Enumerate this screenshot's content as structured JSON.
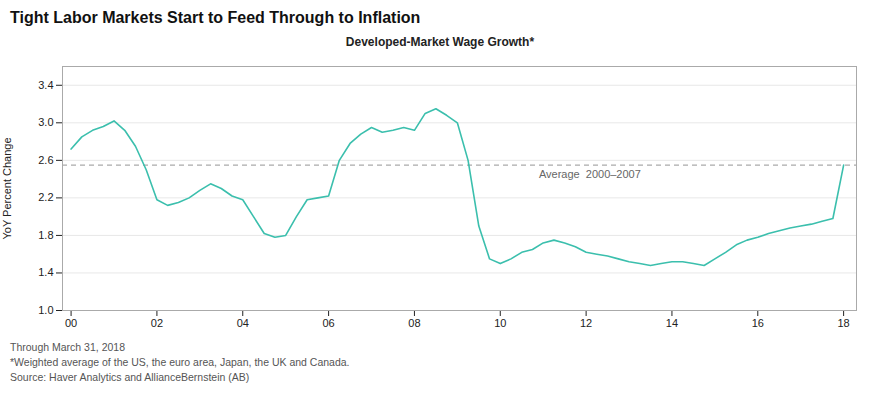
{
  "chart_data": {
    "type": "line",
    "title": "Tight Labor Markets Start to Feed Through to Inflation",
    "subtitle": "Developed-Market Wage Growth*",
    "ylabel": "YoY Percent Change",
    "notes": [
      "Through March 31, 2018",
      "*Weighted average of the US, the euro area, Japan, the UK and Canada.",
      "Source: Haver Analytics and AllianceBernstein (AB)"
    ],
    "color": "#3bbfad",
    "grid": true,
    "average": {
      "value": 2.55,
      "label": "Average  2000–2007",
      "color": "#aaaaaa"
    },
    "x": [
      2000.0,
      2000.25,
      2000.5,
      2000.75,
      2001.0,
      2001.25,
      2001.5,
      2001.75,
      2002.0,
      2002.25,
      2002.5,
      2002.75,
      2003.0,
      2003.25,
      2003.5,
      2003.75,
      2004.0,
      2004.25,
      2004.5,
      2004.75,
      2005.0,
      2005.25,
      2005.5,
      2005.75,
      2006.0,
      2006.25,
      2006.5,
      2006.75,
      2007.0,
      2007.25,
      2007.5,
      2007.75,
      2008.0,
      2008.25,
      2008.5,
      2008.75,
      2009.0,
      2009.25,
      2009.5,
      2009.75,
      2010.0,
      2010.25,
      2010.5,
      2010.75,
      2011.0,
      2011.25,
      2011.5,
      2011.75,
      2012.0,
      2012.25,
      2012.5,
      2012.75,
      2013.0,
      2013.25,
      2013.5,
      2013.75,
      2014.0,
      2014.25,
      2014.5,
      2014.75,
      2015.0,
      2015.25,
      2015.5,
      2015.75,
      2016.0,
      2016.25,
      2016.5,
      2016.75,
      2017.0,
      2017.25,
      2017.5,
      2017.75,
      2018.0
    ],
    "values": [
      2.72,
      2.85,
      2.92,
      2.96,
      3.02,
      2.92,
      2.75,
      2.5,
      2.18,
      2.12,
      2.15,
      2.2,
      2.28,
      2.35,
      2.3,
      2.22,
      2.18,
      2.0,
      1.82,
      1.78,
      1.8,
      2.0,
      2.18,
      2.2,
      2.22,
      2.6,
      2.78,
      2.88,
      2.95,
      2.9,
      2.92,
      2.95,
      2.92,
      3.1,
      3.15,
      3.08,
      3.0,
      2.6,
      1.9,
      1.55,
      1.5,
      1.55,
      1.62,
      1.65,
      1.72,
      1.75,
      1.72,
      1.68,
      1.62,
      1.6,
      1.58,
      1.55,
      1.52,
      1.5,
      1.48,
      1.5,
      1.52,
      1.52,
      1.5,
      1.48,
      1.55,
      1.62,
      1.7,
      1.75,
      1.78,
      1.82,
      1.85,
      1.88,
      1.9,
      1.92,
      1.95,
      1.98,
      2.55
    ],
    "xlim": [
      1999.8,
      2018.3
    ],
    "xticks": [
      {
        "value": 2000,
        "label": "00"
      },
      {
        "value": 2002,
        "label": "02"
      },
      {
        "value": 2004,
        "label": "04"
      },
      {
        "value": 2006,
        "label": "06"
      },
      {
        "value": 2008,
        "label": "08"
      },
      {
        "value": 2010,
        "label": "10"
      },
      {
        "value": 2012,
        "label": "12"
      },
      {
        "value": 2014,
        "label": "14"
      },
      {
        "value": 2016,
        "label": "16"
      },
      {
        "value": 2018,
        "label": "18"
      }
    ],
    "ylim": [
      1.0,
      3.6
    ],
    "yticks": [
      {
        "value": 1.0,
        "label": "1.0"
      },
      1.4,
      1.8,
      2.2,
      2.6,
      {
        "value": 3.0,
        "label": "3.0"
      },
      3.4
    ]
  }
}
